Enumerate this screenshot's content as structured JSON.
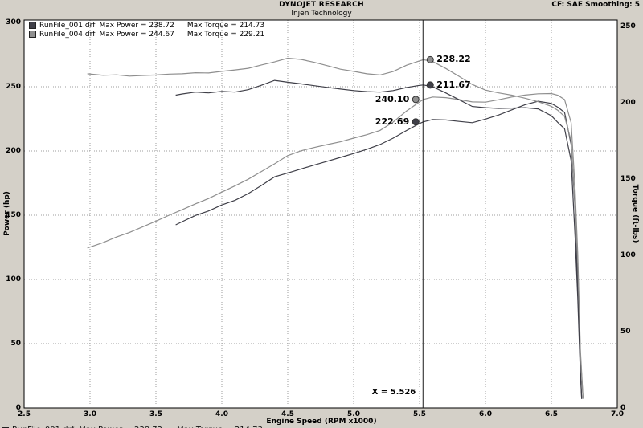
{
  "header": {
    "title": "DYNOJET RESEARCH",
    "subtitle": "Injen Technology",
    "correction": "CF: SAE  Smoothing: 5"
  },
  "legend": {
    "items": [
      {
        "file": "RunFile_001.drf",
        "max_power": "Max Power = 238.72",
        "max_torque": "Max Torque = 214.73",
        "color": "#3f3f48"
      },
      {
        "file": "RunFile_004.drf",
        "max_power": "Max Power = 244.67",
        "max_torque": "Max Torque = 229.21",
        "color": "#8f8f8f"
      }
    ]
  },
  "chart_data": {
    "type": "line",
    "title": "DYNOJET RESEARCH",
    "subtitle": "Injen Technology",
    "xlabel": "Engine Speed (RPM x1000)",
    "ylabel_left": "Power (hp)",
    "ylabel_right": "Torque (ft-lbs)",
    "grid": true,
    "legend_position": "top-left",
    "x_axis": {
      "min": 2.5,
      "max": 7.0,
      "ticks": [
        2.5,
        3.0,
        3.5,
        4.0,
        4.5,
        5.0,
        5.5,
        6.0,
        6.5,
        7.0
      ]
    },
    "power_axis": {
      "min": 0,
      "max": 300,
      "ticks": [
        0,
        50,
        100,
        150,
        200,
        250,
        300
      ]
    },
    "torque_axis": {
      "min": 0,
      "max": 250,
      "ticks": [
        0,
        50,
        100,
        150,
        200,
        250
      ]
    },
    "cursor": {
      "x": 5.526,
      "label": "X = 5.526"
    },
    "markers": [
      {
        "label": "228.22",
        "value": 228.22,
        "axis": "torque",
        "series": "RunFile_004 Torque",
        "color": "#8f8f8f",
        "label_side": "right"
      },
      {
        "label": "211.67",
        "value": 211.67,
        "axis": "torque",
        "series": "RunFile_001 Torque",
        "color": "#3f3f48",
        "label_side": "right"
      },
      {
        "label": "240.10",
        "value": 240.1,
        "axis": "power",
        "series": "RunFile_004 Power",
        "color": "#8f8f8f",
        "label_side": "left"
      },
      {
        "label": "222.69",
        "value": 222.69,
        "axis": "power",
        "series": "RunFile_001 Power",
        "color": "#3f3f48",
        "label_side": "left"
      }
    ],
    "series": [
      {
        "name": "RunFile_004-power",
        "axis": "power",
        "color": "#8f8f8f",
        "points": [
          [
            2.98,
            124.5
          ],
          [
            3.1,
            128.7
          ],
          [
            3.2,
            133.0
          ],
          [
            3.3,
            136.6
          ],
          [
            3.4,
            141.0
          ],
          [
            3.5,
            145.4
          ],
          [
            3.6,
            150.0
          ],
          [
            3.7,
            154.3
          ],
          [
            3.8,
            158.9
          ],
          [
            3.9,
            163.0
          ],
          [
            4.0,
            168.0
          ],
          [
            4.1,
            172.9
          ],
          [
            4.2,
            178.0
          ],
          [
            4.3,
            184.0
          ],
          [
            4.4,
            190.0
          ],
          [
            4.5,
            196.4
          ],
          [
            4.6,
            200.1
          ],
          [
            4.7,
            202.7
          ],
          [
            4.8,
            205.0
          ],
          [
            4.9,
            207.1
          ],
          [
            5.0,
            210.0
          ],
          [
            5.1,
            212.7
          ],
          [
            5.2,
            216.0
          ],
          [
            5.3,
            222.5
          ],
          [
            5.4,
            231.0
          ],
          [
            5.5,
            238.2
          ],
          [
            5.53,
            240.1
          ],
          [
            5.6,
            242.0
          ],
          [
            5.7,
            241.5
          ],
          [
            5.8,
            240.0
          ],
          [
            5.9,
            238.2
          ],
          [
            6.0,
            238.0
          ],
          [
            6.1,
            239.9
          ],
          [
            6.2,
            242.0
          ],
          [
            6.3,
            243.5
          ],
          [
            6.4,
            244.5
          ],
          [
            6.5,
            244.7
          ],
          [
            6.55,
            243.3
          ],
          [
            6.6,
            240.0
          ],
          [
            6.65,
            222.0
          ],
          [
            6.68,
            170.0
          ],
          [
            6.7,
            120.0
          ],
          [
            6.72,
            45.0
          ],
          [
            6.74,
            8.0
          ]
        ]
      },
      {
        "name": "RunFile_001-power",
        "axis": "power",
        "color": "#3f3f48",
        "points": [
          [
            3.65,
            142.5
          ],
          [
            3.7,
            145.0
          ],
          [
            3.8,
            149.8
          ],
          [
            3.9,
            153.3
          ],
          [
            4.0,
            158.0
          ],
          [
            4.1,
            161.6
          ],
          [
            4.2,
            166.8
          ],
          [
            4.3,
            173.1
          ],
          [
            4.4,
            179.9
          ],
          [
            4.5,
            182.9
          ],
          [
            4.6,
            186.0
          ],
          [
            4.7,
            189.0
          ],
          [
            4.8,
            192.0
          ],
          [
            4.9,
            195.0
          ],
          [
            5.0,
            198.0
          ],
          [
            5.1,
            201.3
          ],
          [
            5.2,
            205.0
          ],
          [
            5.3,
            210.0
          ],
          [
            5.4,
            215.9
          ],
          [
            5.5,
            221.4
          ],
          [
            5.53,
            222.7
          ],
          [
            5.6,
            224.5
          ],
          [
            5.7,
            224.1
          ],
          [
            5.8,
            223.0
          ],
          [
            5.9,
            222.0
          ],
          [
            6.0,
            224.8
          ],
          [
            6.1,
            228.0
          ],
          [
            6.2,
            232.0
          ],
          [
            6.3,
            236.0
          ],
          [
            6.4,
            238.7
          ],
          [
            6.5,
            237.0
          ],
          [
            6.55,
            234.0
          ],
          [
            6.6,
            230.0
          ],
          [
            6.65,
            205.0
          ],
          [
            6.68,
            155.0
          ],
          [
            6.7,
            95.0
          ],
          [
            6.72,
            30.0
          ],
          [
            6.73,
            7.0
          ]
        ]
      },
      {
        "name": "RunFile_004-torque",
        "axis": "torque",
        "color": "#8f8f8f",
        "points": [
          [
            2.98,
            219.0
          ],
          [
            3.1,
            218.0
          ],
          [
            3.2,
            218.3
          ],
          [
            3.3,
            217.5
          ],
          [
            3.4,
            217.9
          ],
          [
            3.5,
            218.2
          ],
          [
            3.6,
            218.8
          ],
          [
            3.7,
            219.0
          ],
          [
            3.8,
            219.7
          ],
          [
            3.9,
            219.5
          ],
          [
            4.0,
            220.6
          ],
          [
            4.1,
            221.5
          ],
          [
            4.2,
            222.6
          ],
          [
            4.3,
            224.8
          ],
          [
            4.4,
            226.8
          ],
          [
            4.5,
            229.2
          ],
          [
            4.6,
            228.4
          ],
          [
            4.7,
            226.5
          ],
          [
            4.8,
            224.3
          ],
          [
            4.9,
            222.0
          ],
          [
            5.0,
            220.6
          ],
          [
            5.1,
            219.0
          ],
          [
            5.2,
            218.2
          ],
          [
            5.3,
            220.5
          ],
          [
            5.4,
            224.6
          ],
          [
            5.5,
            227.5
          ],
          [
            5.53,
            228.2
          ],
          [
            5.6,
            227.0
          ],
          [
            5.7,
            222.5
          ],
          [
            5.8,
            217.3
          ],
          [
            5.9,
            212.0
          ],
          [
            6.0,
            208.3
          ],
          [
            6.1,
            206.5
          ],
          [
            6.2,
            205.0
          ],
          [
            6.3,
            203.0
          ],
          [
            6.4,
            200.7
          ],
          [
            6.5,
            197.7
          ],
          [
            6.55,
            195.0
          ],
          [
            6.6,
            191.0
          ],
          [
            6.65,
            175.0
          ],
          [
            6.68,
            132.0
          ],
          [
            6.7,
            95.0
          ],
          [
            6.72,
            35.0
          ],
          [
            6.74,
            6.0
          ]
        ]
      },
      {
        "name": "RunFile_001-torque",
        "axis": "torque",
        "color": "#3f3f48",
        "points": [
          [
            3.65,
            205.0
          ],
          [
            3.7,
            205.8
          ],
          [
            3.8,
            207.0
          ],
          [
            3.9,
            206.5
          ],
          [
            4.0,
            207.5
          ],
          [
            4.1,
            207.0
          ],
          [
            4.2,
            208.6
          ],
          [
            4.3,
            211.5
          ],
          [
            4.4,
            214.7
          ],
          [
            4.5,
            213.5
          ],
          [
            4.6,
            212.4
          ],
          [
            4.7,
            211.2
          ],
          [
            4.8,
            210.1
          ],
          [
            4.9,
            209.0
          ],
          [
            5.0,
            208.0
          ],
          [
            5.1,
            207.3
          ],
          [
            5.2,
            207.0
          ],
          [
            5.3,
            208.0
          ],
          [
            5.4,
            210.0
          ],
          [
            5.5,
            211.4
          ],
          [
            5.53,
            211.7
          ],
          [
            5.6,
            210.5
          ],
          [
            5.7,
            206.4
          ],
          [
            5.8,
            202.0
          ],
          [
            5.9,
            197.6
          ],
          [
            6.0,
            196.8
          ],
          [
            6.1,
            196.3
          ],
          [
            6.2,
            196.5
          ],
          [
            6.3,
            196.8
          ],
          [
            6.4,
            196.0
          ],
          [
            6.5,
            191.5
          ],
          [
            6.55,
            187.0
          ],
          [
            6.6,
            183.0
          ],
          [
            6.65,
            162.0
          ],
          [
            6.68,
            112.0
          ],
          [
            6.7,
            72.0
          ],
          [
            6.72,
            22.0
          ],
          [
            6.73,
            6.0
          ]
        ]
      }
    ]
  }
}
